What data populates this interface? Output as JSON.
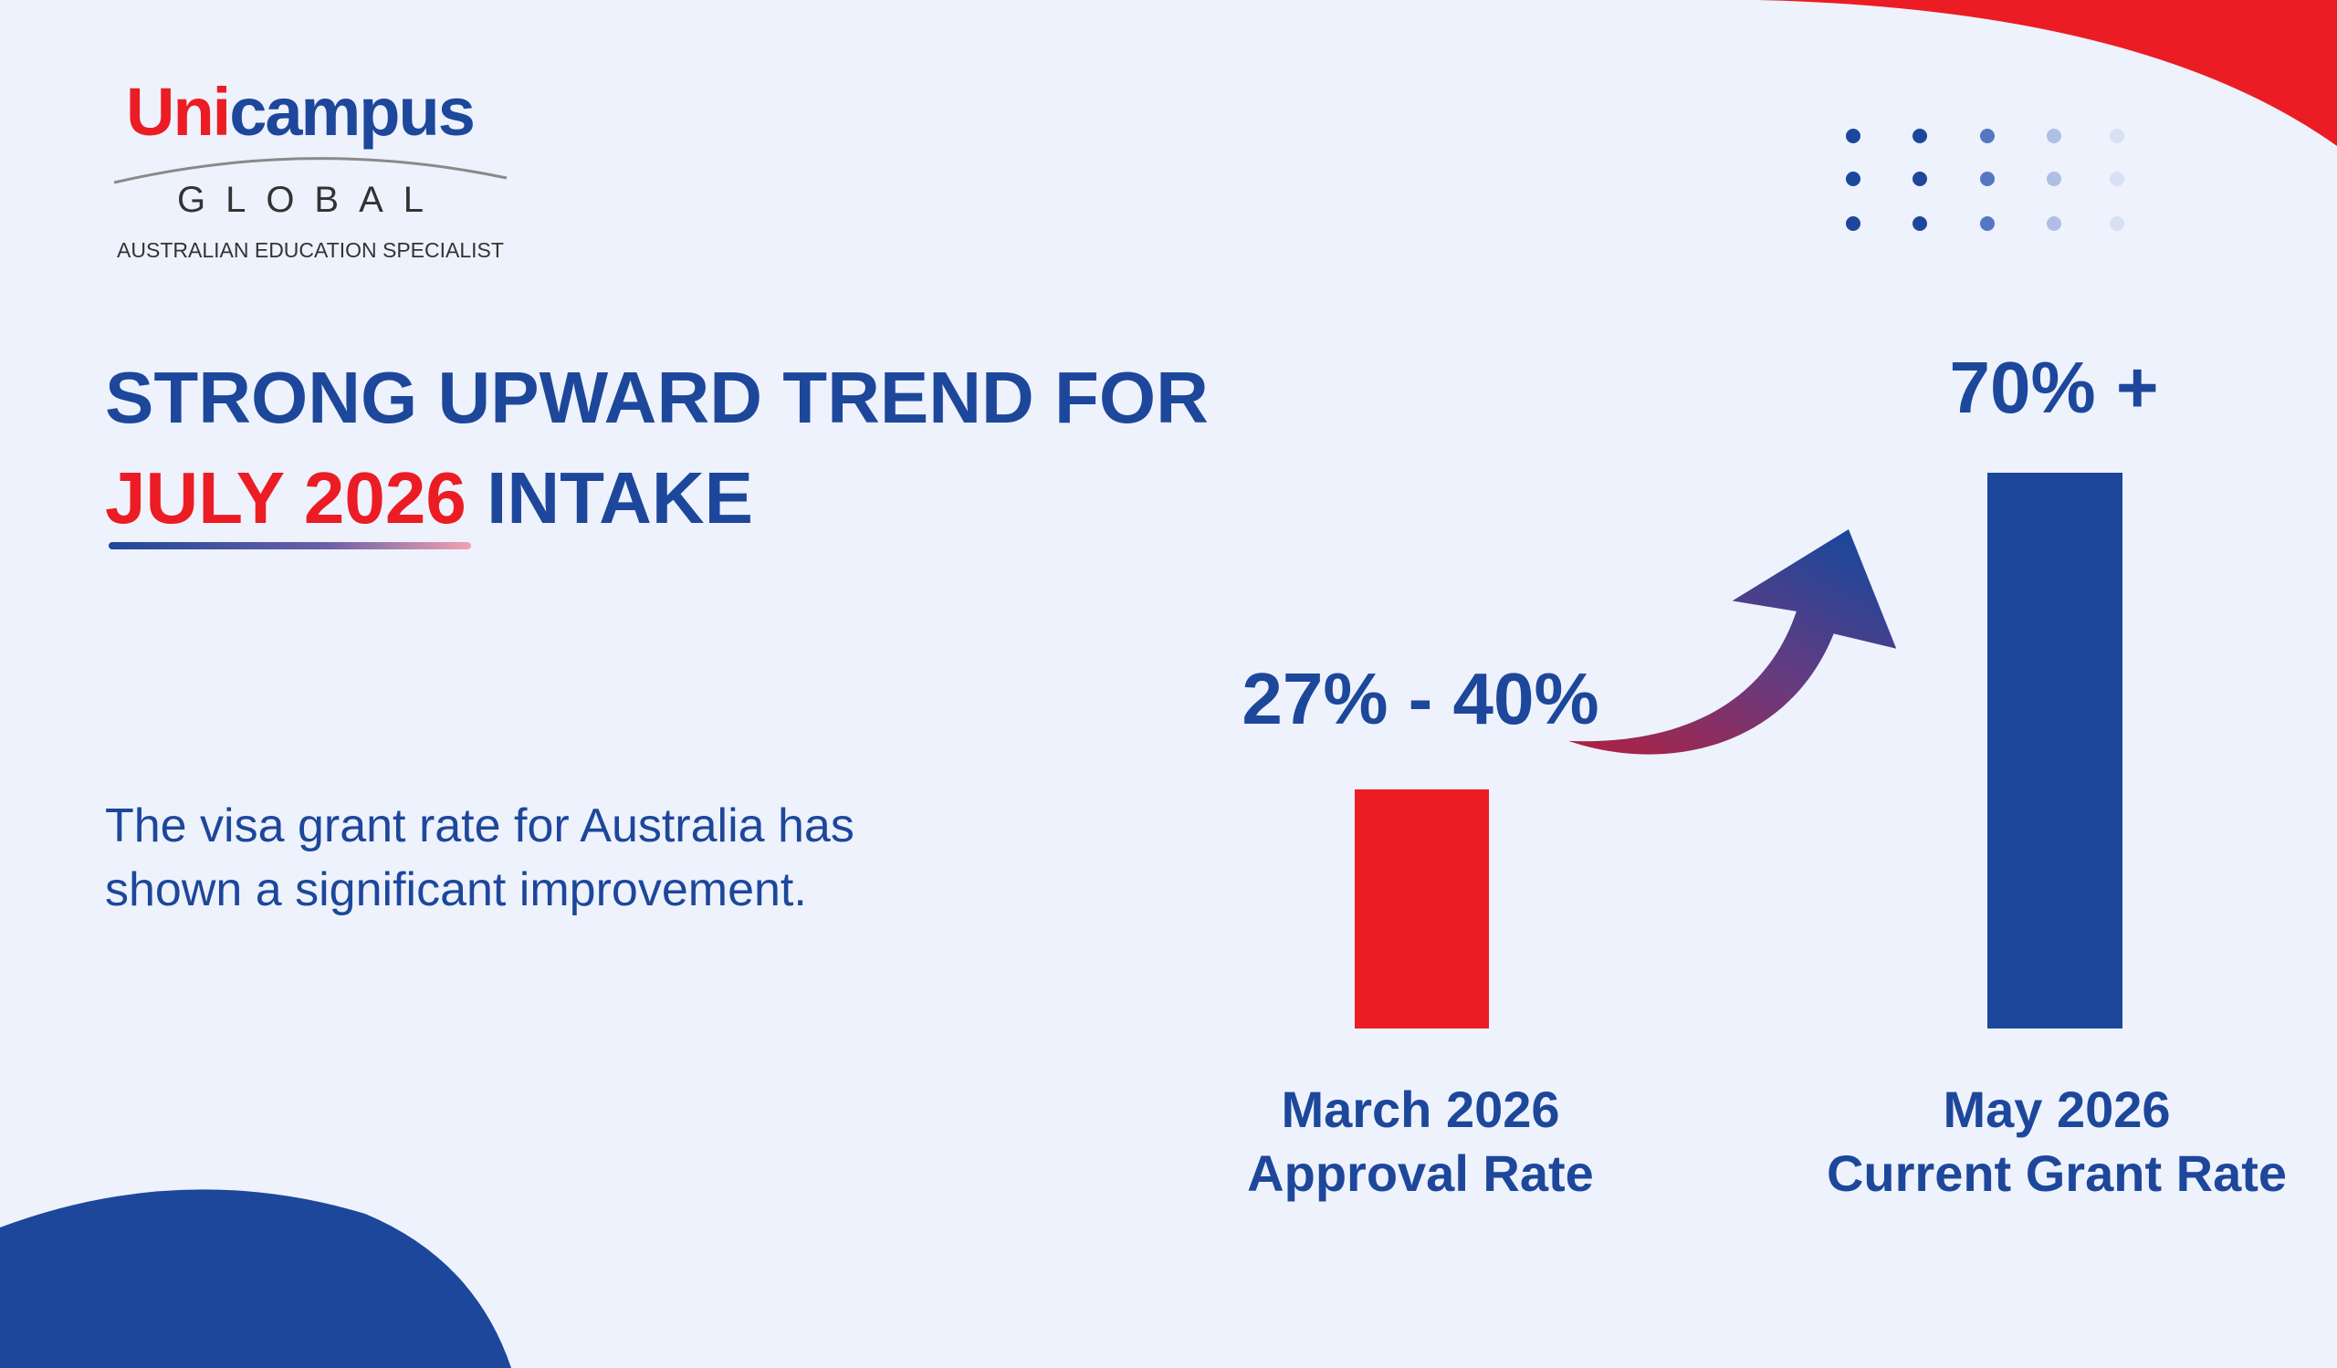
{
  "logo": {
    "brand_start": "Uni",
    "brand_end": "campus",
    "subtitle": "GLOBAL",
    "tagline": "AUSTRALIAN EDUCATION SPECIALIST"
  },
  "heading": {
    "line1": "STRONG UPWARD TREND FOR",
    "highlight": "JULY 2026",
    "rest": "INTAKE"
  },
  "description": [
    "The visa grant rate for Australia has",
    "shown a significant improvement."
  ],
  "comparison": [
    {
      "figure": "27% - 40%",
      "label": [
        "March 2026",
        "Approval Rate"
      ]
    },
    {
      "figure": "70% +",
      "label": [
        "May 2026",
        "Current Grant Rate"
      ]
    }
  ]
}
